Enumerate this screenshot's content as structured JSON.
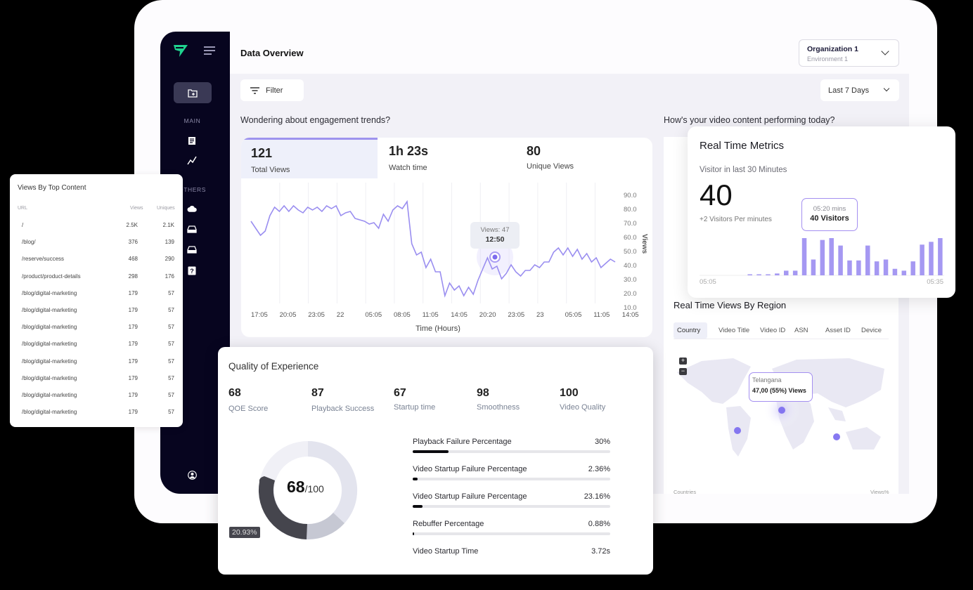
{
  "colors": {
    "accent": "#9e93ee",
    "sidebar_bg": "#07051f",
    "line": "#9a8ef0",
    "bars": "#a598f2",
    "donut_dark": "#44444c"
  },
  "sidebar": {
    "logo_icon": "arrow-logo-icon",
    "menu_icon": "hamburger-menu-icon",
    "active_icon": "folder-add-icon",
    "section_main": "MAIN",
    "section_others": "OTHERS",
    "items_main": [
      {
        "icon": "report-icon"
      },
      {
        "icon": "trend-line-icon"
      }
    ],
    "items_others": [
      {
        "icon": "cloud-icon"
      },
      {
        "icon": "inbox-icon"
      },
      {
        "icon": "inbox-icon"
      },
      {
        "icon": "help-icon"
      }
    ],
    "profile_icon": "user-circle-icon"
  },
  "header": {
    "title": "Data Overview",
    "org": {
      "name": "Organization 1",
      "env": "Environment 1"
    }
  },
  "toolbar": {
    "filter_label": "Filter",
    "range_label": "Last 7 Days"
  },
  "engagement": {
    "question": "Wondering about engagement trends?",
    "kpis": [
      {
        "value": "121",
        "label": "Total Views"
      },
      {
        "value": "1h 23s",
        "label": "Watch time"
      },
      {
        "value": "80",
        "label": "Unique Views"
      }
    ],
    "tooltip": {
      "line1": "Views: 47",
      "line2": "12:50"
    }
  },
  "performance": {
    "question": "How's your video content performing today?"
  },
  "realtime": {
    "title": "Real Time Metrics",
    "subtitle": "Visitor in last 30 Minutes",
    "count": "40",
    "rate": "+2 Visitors Per minutes",
    "tooltip": {
      "line1": "05:20 mins",
      "line2": "40 Visitors"
    },
    "axis_start": "05:05",
    "axis_end": "05:35"
  },
  "region": {
    "title": "Real Time Views By Region",
    "tabs": [
      "Country",
      "Video Title",
      "Video ID",
      "ASN",
      "Asset ID",
      "Device"
    ],
    "zoom_in": "+",
    "zoom_out": "−",
    "tooltip": {
      "line1": "Telangana",
      "line2": "47,00 (55%) Views"
    },
    "footer_left": "Countries",
    "footer_right": "Views%"
  },
  "top_content": {
    "title": "Views By Top Content",
    "columns": [
      "URL",
      "Views",
      "Uniques"
    ],
    "rows": [
      {
        "url": "/",
        "views": "2.5K",
        "uniques": "2.1K"
      },
      {
        "url": "/blog/",
        "views": "376",
        "uniques": "139"
      },
      {
        "url": "/reserve/success",
        "views": "468",
        "uniques": "290"
      },
      {
        "url": "/product/product-details",
        "views": "298",
        "uniques": "176"
      },
      {
        "url": "/blog/digital-marketing",
        "views": "179",
        "uniques": "57"
      },
      {
        "url": "/blog/digital-marketing",
        "views": "179",
        "uniques": "57"
      },
      {
        "url": "/blog/digital-marketing",
        "views": "179",
        "uniques": "57"
      },
      {
        "url": "/blog/digital-marketing",
        "views": "179",
        "uniques": "57"
      },
      {
        "url": "/blog/digital-marketing",
        "views": "179",
        "uniques": "57"
      },
      {
        "url": "/blog/digital-marketing",
        "views": "179",
        "uniques": "57"
      },
      {
        "url": "/blog/digital-marketing",
        "views": "179",
        "uniques": "57"
      },
      {
        "url": "/blog/digital-marketing",
        "views": "179",
        "uniques": "57"
      }
    ]
  },
  "qoe": {
    "title": "Quality of Experience",
    "metrics": [
      {
        "value": "68",
        "label": "QOE Score"
      },
      {
        "value": "87",
        "label": "Playback Success"
      },
      {
        "value": "67",
        "label": "Startup time"
      },
      {
        "value": "98",
        "label": "Smoothness"
      },
      {
        "value": "100",
        "label": "Video Quality"
      }
    ],
    "score": "68",
    "score_max": "/100",
    "donut_tag": "20.93%",
    "stats": [
      {
        "name": "Playback Failure Percentage",
        "value": "30%",
        "fill": 18
      },
      {
        "name": "Video Startup Failure Percentage",
        "value": "2.36%",
        "fill": 2.5
      },
      {
        "name": "Video Startup Failure Percentage",
        "value": "23.16%",
        "fill": 5
      },
      {
        "name": "Rebuffer Percentage",
        "value": "0.88%",
        "fill": 0.6
      },
      {
        "name": "Video Startup Time",
        "value": "3.72s",
        "fill": null
      }
    ]
  },
  "chart_data": [
    {
      "type": "line",
      "title": "Engagement trend - Total Views",
      "xlabel": "Time (Hours)",
      "ylabel": "Views",
      "x_ticks": [
        "17:05",
        "20:05",
        "23:05",
        "22",
        "05:05",
        "08:05",
        "11:05",
        "14:05",
        "20:20",
        "23:05",
        "23",
        "05:05",
        "11:05",
        "14:05"
      ],
      "y_ticks": [
        "90.0",
        "80.0",
        "70.0",
        "60.0",
        "50.0",
        "40.0",
        "30.0",
        "20.0",
        "10.0"
      ],
      "ylim": [
        10,
        90
      ],
      "grid": "vertical",
      "values": [
        70,
        65,
        60,
        63,
        74,
        80,
        77,
        81,
        77,
        81,
        78,
        76,
        80,
        78,
        80,
        77,
        81,
        79,
        81,
        74,
        76,
        77,
        72,
        71,
        70,
        68,
        69,
        65,
        75,
        70,
        78,
        81,
        79,
        84,
        54,
        46,
        48,
        37,
        43,
        34,
        34,
        17,
        26,
        21,
        24,
        17,
        23,
        18,
        28,
        36,
        44,
        36,
        38,
        29,
        33,
        39,
        34,
        31,
        35,
        35,
        39,
        37,
        41,
        41,
        48,
        51,
        46,
        51,
        45,
        50,
        43,
        47,
        41,
        44,
        37,
        40,
        43,
        41
      ],
      "highlight": {
        "label": "Views: 47",
        "time": "12:50"
      }
    },
    {
      "type": "bar",
      "title": "Real Time Metrics - Visitors in last 30 Minutes",
      "x_range": [
        "05:05",
        "05:35"
      ],
      "values": [
        0,
        0,
        0,
        0,
        0,
        1,
        1,
        1,
        2,
        5,
        5,
        40,
        17,
        38,
        40,
        32,
        16,
        16,
        32,
        15,
        17,
        7,
        5,
        15,
        33,
        36,
        40
      ],
      "highlight": {
        "label": "05:20 mins",
        "value": "40 Visitors"
      }
    },
    {
      "type": "pie",
      "title": "QOE Score",
      "center_label": "68/100",
      "segments": [
        {
          "label": "dark segment",
          "value": 20.93
        },
        {
          "label": "mid grey",
          "value": 14
        },
        {
          "label": "light grey",
          "value": 33
        },
        {
          "label": "lightest",
          "value": 32.07
        }
      ]
    }
  ]
}
